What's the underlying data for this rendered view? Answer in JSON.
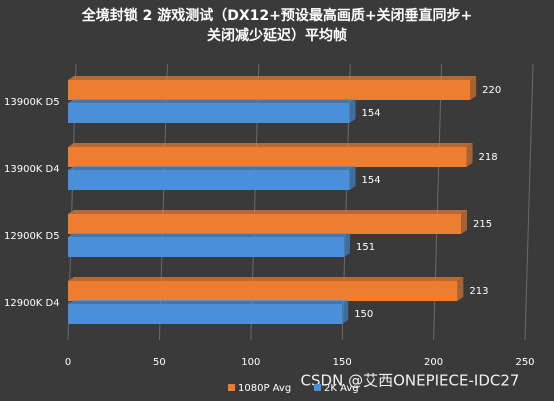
{
  "chart_data": {
    "type": "hbar",
    "title_lines": [
      "全境封锁 2 游戏测试（DX12+预设最高画质+关闭垂直同步+",
      "关闭减少延迟）平均帧"
    ],
    "categories": [
      "13900K D5",
      "13900K D4",
      "12900K D5",
      "12900K D4"
    ],
    "series": [
      {
        "name": "1080P Avg",
        "color": "#ed7d31",
        "values": [
          220,
          218,
          215,
          213
        ]
      },
      {
        "name": "2K Avg",
        "color": "#4a90d9",
        "values": [
          154,
          154,
          151,
          150
        ]
      }
    ],
    "xlim": [
      0,
      250
    ],
    "xticks": [
      0,
      50,
      100,
      150,
      200,
      250
    ],
    "grid": true,
    "watermark": "CSDN @艾西ONEPIECE-IDC27"
  }
}
